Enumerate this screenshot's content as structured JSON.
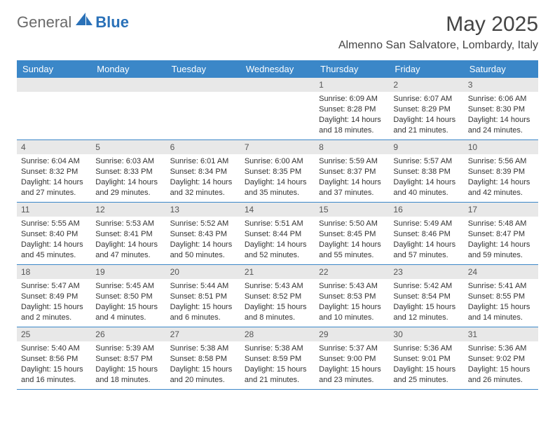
{
  "brand": {
    "part1": "General",
    "part2": "Blue"
  },
  "title": "May 2025",
  "location": "Almenno San Salvatore, Lombardy, Italy",
  "colors": {
    "header_bg": "#3b87c8",
    "header_text": "#ffffff",
    "daybar_bg": "#e8e8e8",
    "border": "#3b87c8",
    "text": "#333333",
    "logo_gray": "#6a6a6a",
    "logo_blue": "#2a71b8"
  },
  "weekdays": [
    "Sunday",
    "Monday",
    "Tuesday",
    "Wednesday",
    "Thursday",
    "Friday",
    "Saturday"
  ],
  "weeks": [
    [
      null,
      null,
      null,
      null,
      {
        "n": "1",
        "sr": "Sunrise: 6:09 AM",
        "ss": "Sunset: 8:28 PM",
        "d1": "Daylight: 14 hours",
        "d2": "and 18 minutes."
      },
      {
        "n": "2",
        "sr": "Sunrise: 6:07 AM",
        "ss": "Sunset: 8:29 PM",
        "d1": "Daylight: 14 hours",
        "d2": "and 21 minutes."
      },
      {
        "n": "3",
        "sr": "Sunrise: 6:06 AM",
        "ss": "Sunset: 8:30 PM",
        "d1": "Daylight: 14 hours",
        "d2": "and 24 minutes."
      }
    ],
    [
      {
        "n": "4",
        "sr": "Sunrise: 6:04 AM",
        "ss": "Sunset: 8:32 PM",
        "d1": "Daylight: 14 hours",
        "d2": "and 27 minutes."
      },
      {
        "n": "5",
        "sr": "Sunrise: 6:03 AM",
        "ss": "Sunset: 8:33 PM",
        "d1": "Daylight: 14 hours",
        "d2": "and 29 minutes."
      },
      {
        "n": "6",
        "sr": "Sunrise: 6:01 AM",
        "ss": "Sunset: 8:34 PM",
        "d1": "Daylight: 14 hours",
        "d2": "and 32 minutes."
      },
      {
        "n": "7",
        "sr": "Sunrise: 6:00 AM",
        "ss": "Sunset: 8:35 PM",
        "d1": "Daylight: 14 hours",
        "d2": "and 35 minutes."
      },
      {
        "n": "8",
        "sr": "Sunrise: 5:59 AM",
        "ss": "Sunset: 8:37 PM",
        "d1": "Daylight: 14 hours",
        "d2": "and 37 minutes."
      },
      {
        "n": "9",
        "sr": "Sunrise: 5:57 AM",
        "ss": "Sunset: 8:38 PM",
        "d1": "Daylight: 14 hours",
        "d2": "and 40 minutes."
      },
      {
        "n": "10",
        "sr": "Sunrise: 5:56 AM",
        "ss": "Sunset: 8:39 PM",
        "d1": "Daylight: 14 hours",
        "d2": "and 42 minutes."
      }
    ],
    [
      {
        "n": "11",
        "sr": "Sunrise: 5:55 AM",
        "ss": "Sunset: 8:40 PM",
        "d1": "Daylight: 14 hours",
        "d2": "and 45 minutes."
      },
      {
        "n": "12",
        "sr": "Sunrise: 5:53 AM",
        "ss": "Sunset: 8:41 PM",
        "d1": "Daylight: 14 hours",
        "d2": "and 47 minutes."
      },
      {
        "n": "13",
        "sr": "Sunrise: 5:52 AM",
        "ss": "Sunset: 8:43 PM",
        "d1": "Daylight: 14 hours",
        "d2": "and 50 minutes."
      },
      {
        "n": "14",
        "sr": "Sunrise: 5:51 AM",
        "ss": "Sunset: 8:44 PM",
        "d1": "Daylight: 14 hours",
        "d2": "and 52 minutes."
      },
      {
        "n": "15",
        "sr": "Sunrise: 5:50 AM",
        "ss": "Sunset: 8:45 PM",
        "d1": "Daylight: 14 hours",
        "d2": "and 55 minutes."
      },
      {
        "n": "16",
        "sr": "Sunrise: 5:49 AM",
        "ss": "Sunset: 8:46 PM",
        "d1": "Daylight: 14 hours",
        "d2": "and 57 minutes."
      },
      {
        "n": "17",
        "sr": "Sunrise: 5:48 AM",
        "ss": "Sunset: 8:47 PM",
        "d1": "Daylight: 14 hours",
        "d2": "and 59 minutes."
      }
    ],
    [
      {
        "n": "18",
        "sr": "Sunrise: 5:47 AM",
        "ss": "Sunset: 8:49 PM",
        "d1": "Daylight: 15 hours",
        "d2": "and 2 minutes."
      },
      {
        "n": "19",
        "sr": "Sunrise: 5:45 AM",
        "ss": "Sunset: 8:50 PM",
        "d1": "Daylight: 15 hours",
        "d2": "and 4 minutes."
      },
      {
        "n": "20",
        "sr": "Sunrise: 5:44 AM",
        "ss": "Sunset: 8:51 PM",
        "d1": "Daylight: 15 hours",
        "d2": "and 6 minutes."
      },
      {
        "n": "21",
        "sr": "Sunrise: 5:43 AM",
        "ss": "Sunset: 8:52 PM",
        "d1": "Daylight: 15 hours",
        "d2": "and 8 minutes."
      },
      {
        "n": "22",
        "sr": "Sunrise: 5:43 AM",
        "ss": "Sunset: 8:53 PM",
        "d1": "Daylight: 15 hours",
        "d2": "and 10 minutes."
      },
      {
        "n": "23",
        "sr": "Sunrise: 5:42 AM",
        "ss": "Sunset: 8:54 PM",
        "d1": "Daylight: 15 hours",
        "d2": "and 12 minutes."
      },
      {
        "n": "24",
        "sr": "Sunrise: 5:41 AM",
        "ss": "Sunset: 8:55 PM",
        "d1": "Daylight: 15 hours",
        "d2": "and 14 minutes."
      }
    ],
    [
      {
        "n": "25",
        "sr": "Sunrise: 5:40 AM",
        "ss": "Sunset: 8:56 PM",
        "d1": "Daylight: 15 hours",
        "d2": "and 16 minutes."
      },
      {
        "n": "26",
        "sr": "Sunrise: 5:39 AM",
        "ss": "Sunset: 8:57 PM",
        "d1": "Daylight: 15 hours",
        "d2": "and 18 minutes."
      },
      {
        "n": "27",
        "sr": "Sunrise: 5:38 AM",
        "ss": "Sunset: 8:58 PM",
        "d1": "Daylight: 15 hours",
        "d2": "and 20 minutes."
      },
      {
        "n": "28",
        "sr": "Sunrise: 5:38 AM",
        "ss": "Sunset: 8:59 PM",
        "d1": "Daylight: 15 hours",
        "d2": "and 21 minutes."
      },
      {
        "n": "29",
        "sr": "Sunrise: 5:37 AM",
        "ss": "Sunset: 9:00 PM",
        "d1": "Daylight: 15 hours",
        "d2": "and 23 minutes."
      },
      {
        "n": "30",
        "sr": "Sunrise: 5:36 AM",
        "ss": "Sunset: 9:01 PM",
        "d1": "Daylight: 15 hours",
        "d2": "and 25 minutes."
      },
      {
        "n": "31",
        "sr": "Sunrise: 5:36 AM",
        "ss": "Sunset: 9:02 PM",
        "d1": "Daylight: 15 hours",
        "d2": "and 26 minutes."
      }
    ]
  ]
}
